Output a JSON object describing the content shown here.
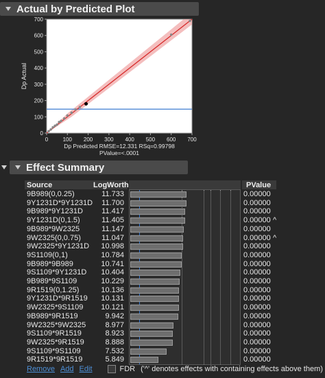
{
  "plot_section": {
    "title": "Actual by Predicted Plot"
  },
  "chart_data": {
    "type": "scatter",
    "ylabel": "Dp Actual",
    "xlabel": "Dp Predicted RMSE=12.331 RSq=0.99798",
    "subtitle": "PValue=<.0001",
    "xlim": [
      0,
      700
    ],
    "ylim": [
      0,
      700
    ],
    "x_ticks": [
      "0",
      "100",
      "200",
      "300",
      "400",
      "500",
      "600",
      "700"
    ],
    "y_ticks": [
      "0",
      "100",
      "200",
      "300",
      "400",
      "500",
      "600",
      "700"
    ],
    "mean_line_y": 147,
    "fit_line": [
      [
        0,
        0
      ],
      [
        700,
        700
      ]
    ],
    "points": [
      {
        "x": 10,
        "y": 12
      },
      {
        "x": 20,
        "y": 22
      },
      {
        "x": 30,
        "y": 35
      },
      {
        "x": 40,
        "y": 45
      },
      {
        "x": 50,
        "y": 52
      },
      {
        "x": 60,
        "y": 68
      },
      {
        "x": 70,
        "y": 75
      },
      {
        "x": 85,
        "y": 90
      },
      {
        "x": 100,
        "y": 108
      },
      {
        "x": 120,
        "y": 125
      },
      {
        "x": 140,
        "y": 145
      },
      {
        "x": 160,
        "y": 160
      },
      {
        "x": 600,
        "y": 605
      },
      {
        "x": 690,
        "y": 690
      }
    ],
    "highlight_point": {
      "x": 190,
      "y": 180
    },
    "colors": {
      "fit": "#d62a2a",
      "band": "#f0a8a8",
      "mean": "#3b7bd1",
      "points": "#888888"
    }
  },
  "effect_section": {
    "title": "Effect Summary"
  },
  "table": {
    "headers": {
      "source": "Source",
      "logworth": "LogWorth",
      "pvalue": "PValue"
    },
    "rows": [
      {
        "source": "9B989(0,0.25)",
        "logworth": "11.733",
        "value": 11.733,
        "pvalue": "0.00000",
        "caret": ""
      },
      {
        "source": "9Y1231D*9Y1231D",
        "logworth": "11.700",
        "value": 11.7,
        "pvalue": "0.00000",
        "caret": ""
      },
      {
        "source": "9B989*9Y1231D",
        "logworth": "11.417",
        "value": 11.417,
        "pvalue": "0.00000",
        "caret": ""
      },
      {
        "source": "9Y1231D(0,1.5)",
        "logworth": "11.405",
        "value": 11.405,
        "pvalue": "0.00000",
        "caret": "^"
      },
      {
        "source": "9B989*9W2325",
        "logworth": "11.147",
        "value": 11.147,
        "pvalue": "0.00000",
        "caret": ""
      },
      {
        "source": "9W2325(0,0.75)",
        "logworth": "11.047",
        "value": 11.047,
        "pvalue": "0.00000",
        "caret": "^"
      },
      {
        "source": "9W2325*9Y1231D",
        "logworth": "10.998",
        "value": 10.998,
        "pvalue": "0.00000",
        "caret": ""
      },
      {
        "source": "9S1109(0,1)",
        "logworth": "10.784",
        "value": 10.784,
        "pvalue": "0.00000",
        "caret": ""
      },
      {
        "source": "9B989*9B989",
        "logworth": "10.741",
        "value": 10.741,
        "pvalue": "0.00000",
        "caret": ""
      },
      {
        "source": "9S1109*9Y1231D",
        "logworth": "10.404",
        "value": 10.404,
        "pvalue": "0.00000",
        "caret": ""
      },
      {
        "source": "9B989*9S1109",
        "logworth": "10.229",
        "value": 10.229,
        "pvalue": "0.00000",
        "caret": ""
      },
      {
        "source": "9R1519(0,1.25)",
        "logworth": "10.136",
        "value": 10.136,
        "pvalue": "0.00000",
        "caret": ""
      },
      {
        "source": "9Y1231D*9R1519",
        "logworth": "10.131",
        "value": 10.131,
        "pvalue": "0.00000",
        "caret": ""
      },
      {
        "source": "9W2325*9S1109",
        "logworth": "10.121",
        "value": 10.121,
        "pvalue": "0.00000",
        "caret": ""
      },
      {
        "source": "9B989*9R1519",
        "logworth": "9.942",
        "value": 9.942,
        "pvalue": "0.00000",
        "caret": ""
      },
      {
        "source": "9W2325*9W2325",
        "logworth": "8.977",
        "value": 8.977,
        "pvalue": "0.00000",
        "caret": ""
      },
      {
        "source": "9S1109*9R1519",
        "logworth": "8.923",
        "value": 8.923,
        "pvalue": "0.00000",
        "caret": ""
      },
      {
        "source": "9W2325*9R1519",
        "logworth": "8.888",
        "value": 8.888,
        "pvalue": "0.00000",
        "caret": ""
      },
      {
        "source": "9S1109*9S1109",
        "logworth": "7.532",
        "value": 7.532,
        "pvalue": "0.00000",
        "caret": ""
      },
      {
        "source": "9R1519*9R1519",
        "logworth": "5.849",
        "value": 5.849,
        "pvalue": "0.00000",
        "caret": ""
      }
    ],
    "bar_scale_max": 23
  },
  "footer": {
    "remove": "Remove",
    "add": "Add",
    "edit": "Edit",
    "fdr": "FDR",
    "note": "('^' denotes effects with containing effects above them)"
  }
}
